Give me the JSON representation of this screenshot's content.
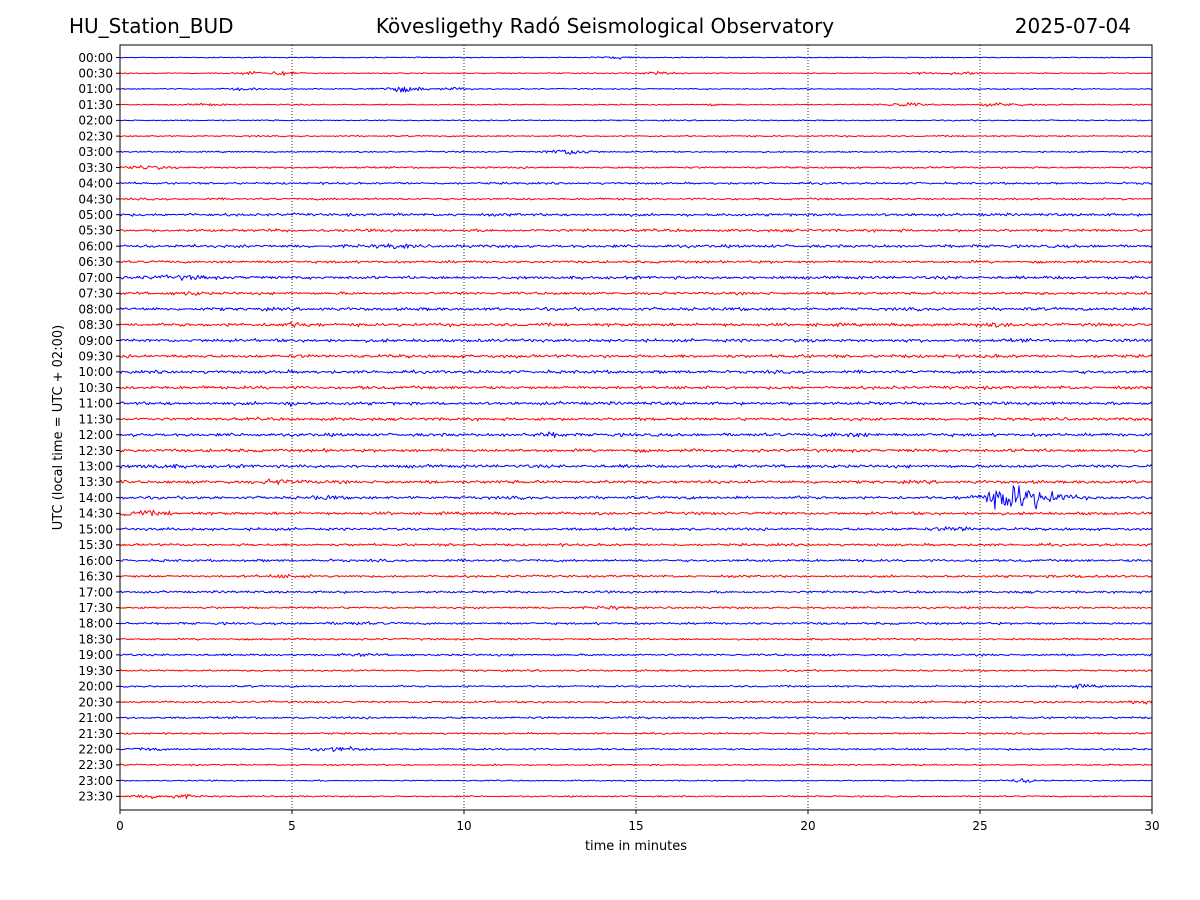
{
  "header": {
    "station": "HU_Station_BUD",
    "observatory": "Kövesligethy Radó Seismological Observatory",
    "date": "2025-07-04"
  },
  "chart_data": {
    "type": "line",
    "title": "Kövesligethy Radó Seismological Observatory",
    "xlabel": "time in minutes",
    "ylabel": "UTC (local time = UTC + 02:00)",
    "xlim": [
      0,
      30
    ],
    "x_ticks": [
      "0",
      "5",
      "10",
      "15",
      "20",
      "25",
      "30"
    ],
    "grid": "vertical dotted",
    "series_colors": [
      "#0000ff",
      "#ff0000"
    ],
    "rows": [
      {
        "label": "00:00",
        "color": "#0000ff",
        "level": 0.25,
        "bursts": [
          [
            14.5,
            0.4,
            0.5
          ]
        ]
      },
      {
        "label": "00:30",
        "color": "#ff0000",
        "level": 0.25,
        "bursts": [
          [
            3.9,
            0.3,
            0.9
          ],
          [
            4.8,
            0.3,
            0.9
          ],
          [
            15.6,
            0.4,
            0.6
          ],
          [
            23.5,
            0.3,
            0.5
          ],
          [
            24.5,
            0.3,
            0.9
          ]
        ]
      },
      {
        "label": "01:00",
        "color": "#0000ff",
        "level": 0.3,
        "bursts": [
          [
            8.2,
            0.5,
            1.2
          ],
          [
            3.5,
            0.3,
            0.5
          ],
          [
            9.8,
            0.3,
            0.5
          ]
        ]
      },
      {
        "label": "01:30",
        "color": "#ff0000",
        "level": 0.3,
        "bursts": [
          [
            22.8,
            0.4,
            0.9
          ],
          [
            25.8,
            0.5,
            0.8
          ],
          [
            2.6,
            0.3,
            0.5
          ],
          [
            17.2,
            0.2,
            0.5
          ]
        ]
      },
      {
        "label": "02:00",
        "color": "#0000ff",
        "level": 0.3,
        "bursts": []
      },
      {
        "label": "02:30",
        "color": "#ff0000",
        "level": 0.35,
        "bursts": []
      },
      {
        "label": "03:00",
        "color": "#0000ff",
        "level": 0.35,
        "bursts": [
          [
            13.1,
            0.4,
            1.4
          ]
        ]
      },
      {
        "label": "03:30",
        "color": "#ff0000",
        "level": 0.45,
        "bursts": [
          [
            0.6,
            0.6,
            0.6
          ]
        ]
      },
      {
        "label": "04:00",
        "color": "#0000ff",
        "level": 0.5,
        "bursts": []
      },
      {
        "label": "04:30",
        "color": "#ff0000",
        "level": 0.5,
        "bursts": []
      },
      {
        "label": "05:00",
        "color": "#0000ff",
        "level": 0.65,
        "bursts": []
      },
      {
        "label": "05:30",
        "color": "#ff0000",
        "level": 0.65,
        "bursts": []
      },
      {
        "label": "06:00",
        "color": "#0000ff",
        "level": 0.7,
        "bursts": [
          [
            8.0,
            0.4,
            0.6
          ]
        ]
      },
      {
        "label": "06:30",
        "color": "#ff0000",
        "level": 0.6,
        "bursts": []
      },
      {
        "label": "07:00",
        "color": "#0000ff",
        "level": 0.7,
        "bursts": [
          [
            1.8,
            0.6,
            0.6
          ]
        ]
      },
      {
        "label": "07:30",
        "color": "#ff0000",
        "level": 0.65,
        "bursts": [
          [
            2.1,
            0.3,
            0.6
          ]
        ]
      },
      {
        "label": "08:00",
        "color": "#0000ff",
        "level": 0.75,
        "bursts": []
      },
      {
        "label": "08:30",
        "color": "#ff0000",
        "level": 0.75,
        "bursts": [
          [
            5.0,
            0.5,
            0.5
          ],
          [
            25.3,
            0.5,
            0.5
          ]
        ]
      },
      {
        "label": "09:00",
        "color": "#0000ff",
        "level": 0.75,
        "bursts": []
      },
      {
        "label": "09:30",
        "color": "#ff0000",
        "level": 0.75,
        "bursts": []
      },
      {
        "label": "10:00",
        "color": "#0000ff",
        "level": 0.75,
        "bursts": []
      },
      {
        "label": "10:30",
        "color": "#ff0000",
        "level": 0.75,
        "bursts": []
      },
      {
        "label": "11:00",
        "color": "#0000ff",
        "level": 0.75,
        "bursts": [
          [
            5.1,
            0.3,
            0.5
          ]
        ]
      },
      {
        "label": "11:30",
        "color": "#ff0000",
        "level": 0.7,
        "bursts": []
      },
      {
        "label": "12:00",
        "color": "#0000ff",
        "level": 0.75,
        "bursts": [
          [
            12.4,
            0.4,
            0.6
          ],
          [
            21.2,
            0.5,
            0.6
          ]
        ]
      },
      {
        "label": "12:30",
        "color": "#ff0000",
        "level": 0.75,
        "bursts": []
      },
      {
        "label": "13:00",
        "color": "#0000ff",
        "level": 0.75,
        "bursts": [
          [
            1.2,
            0.4,
            0.6
          ]
        ]
      },
      {
        "label": "13:30",
        "color": "#ff0000",
        "level": 0.75,
        "bursts": [
          [
            4.6,
            0.5,
            0.7
          ]
        ]
      },
      {
        "label": "14:00",
        "color": "#0000ff",
        "level": 0.7,
        "bursts": [
          [
            26.2,
            0.7,
            6.0
          ],
          [
            6.0,
            0.3,
            0.6
          ]
        ]
      },
      {
        "label": "14:30",
        "color": "#ff0000",
        "level": 0.7,
        "bursts": [
          [
            0.5,
            0.6,
            1.0
          ]
        ]
      },
      {
        "label": "15:00",
        "color": "#0000ff",
        "level": 0.65,
        "bursts": [
          [
            24.3,
            0.5,
            0.6
          ]
        ]
      },
      {
        "label": "15:30",
        "color": "#ff0000",
        "level": 0.6,
        "bursts": []
      },
      {
        "label": "16:00",
        "color": "#0000ff",
        "level": 0.6,
        "bursts": []
      },
      {
        "label": "16:30",
        "color": "#ff0000",
        "level": 0.55,
        "bursts": [
          [
            4.8,
            0.4,
            0.6
          ],
          [
            28.2,
            0.4,
            0.6
          ]
        ]
      },
      {
        "label": "17:00",
        "color": "#0000ff",
        "level": 0.55,
        "bursts": []
      },
      {
        "label": "17:30",
        "color": "#ff0000",
        "level": 0.5,
        "bursts": [
          [
            14.2,
            0.3,
            0.5
          ]
        ]
      },
      {
        "label": "18:00",
        "color": "#0000ff",
        "level": 0.55,
        "bursts": [
          [
            6.8,
            0.4,
            0.5
          ]
        ]
      },
      {
        "label": "18:30",
        "color": "#ff0000",
        "level": 0.45,
        "bursts": []
      },
      {
        "label": "19:00",
        "color": "#0000ff",
        "level": 0.5,
        "bursts": [
          [
            7.0,
            0.3,
            0.5
          ]
        ]
      },
      {
        "label": "19:30",
        "color": "#ff0000",
        "level": 0.45,
        "bursts": []
      },
      {
        "label": "20:00",
        "color": "#0000ff",
        "level": 0.45,
        "bursts": [
          [
            27.9,
            0.3,
            0.6
          ]
        ]
      },
      {
        "label": "20:30",
        "color": "#ff0000",
        "level": 0.5,
        "bursts": [
          [
            29.5,
            0.4,
            0.5
          ]
        ]
      },
      {
        "label": "21:00",
        "color": "#0000ff",
        "level": 0.5,
        "bursts": []
      },
      {
        "label": "21:30",
        "color": "#ff0000",
        "level": 0.4,
        "bursts": []
      },
      {
        "label": "22:00",
        "color": "#0000ff",
        "level": 0.45,
        "bursts": [
          [
            6.3,
            0.5,
            1.0
          ],
          [
            0.8,
            0.3,
            0.5
          ]
        ]
      },
      {
        "label": "22:30",
        "color": "#ff0000",
        "level": 0.35,
        "bursts": []
      },
      {
        "label": "23:00",
        "color": "#0000ff",
        "level": 0.3,
        "bursts": [
          [
            26.3,
            0.4,
            0.8
          ]
        ]
      },
      {
        "label": "23:30",
        "color": "#ff0000",
        "level": 0.35,
        "bursts": [
          [
            1.2,
            0.6,
            1.0
          ]
        ]
      }
    ]
  }
}
